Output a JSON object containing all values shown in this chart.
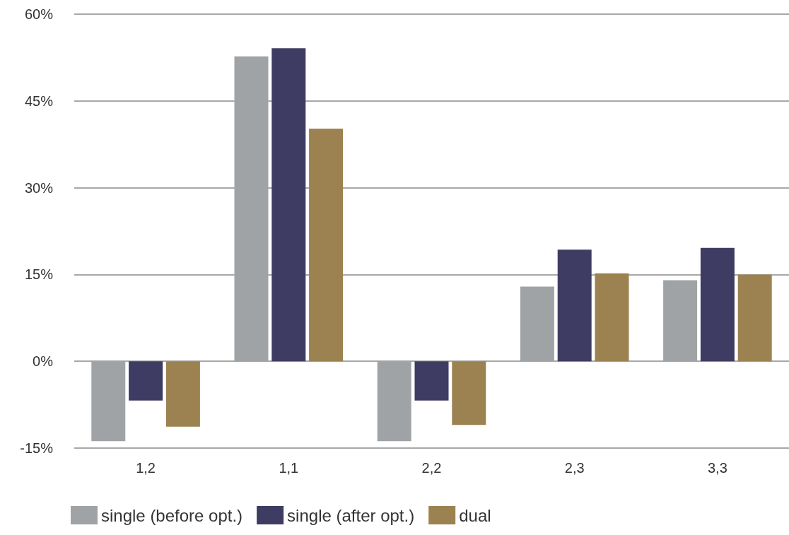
{
  "chart_data": {
    "type": "bar",
    "categories": [
      "1,2",
      "1,1",
      "2,2",
      "2,3",
      "3,3"
    ],
    "series": [
      {
        "name": "single (before opt.)",
        "color": "#a0a3a6",
        "values": [
          -13.8,
          52.7,
          -13.8,
          12.9,
          14.0
        ]
      },
      {
        "name": "single (after opt.)",
        "color": "#3f3c63",
        "values": [
          -6.8,
          54.1,
          -6.8,
          19.3,
          19.6
        ]
      },
      {
        "name": "dual",
        "color": "#9c8250",
        "values": [
          -11.3,
          40.2,
          -11.0,
          15.2,
          15.0
        ]
      }
    ],
    "ylim": [
      -15,
      60
    ],
    "yticks": [
      {
        "value": -15,
        "label": "-15%"
      },
      {
        "value": 0,
        "label": "0%"
      },
      {
        "value": 15,
        "label": "15%"
      },
      {
        "value": 30,
        "label": "30%"
      },
      {
        "value": 45,
        "label": "45%"
      },
      {
        "value": 60,
        "label": "60%"
      }
    ],
    "grid": "y",
    "legend": "bottom"
  }
}
